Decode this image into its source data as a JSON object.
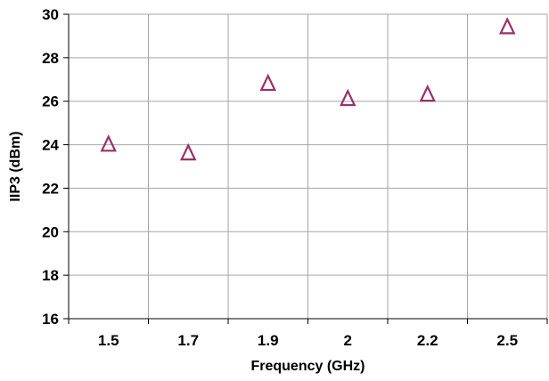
{
  "chart_data": {
    "type": "scatter",
    "title": "",
    "xlabel": "Frequency (GHz)",
    "ylabel": "IIP3 (dBm)",
    "categories": [
      "1.5",
      "1.7",
      "1.9",
      "2",
      "2.2",
      "2.5"
    ],
    "series": [
      {
        "values": [
          24.0,
          23.6,
          26.8,
          26.1,
          26.3,
          29.4
        ],
        "marker": "triangle-open",
        "color": "#9b2f6b"
      }
    ],
    "ylim": [
      16,
      30
    ],
    "yticks": [
      16,
      18,
      20,
      22,
      24,
      26,
      28,
      30
    ],
    "grid": true
  }
}
